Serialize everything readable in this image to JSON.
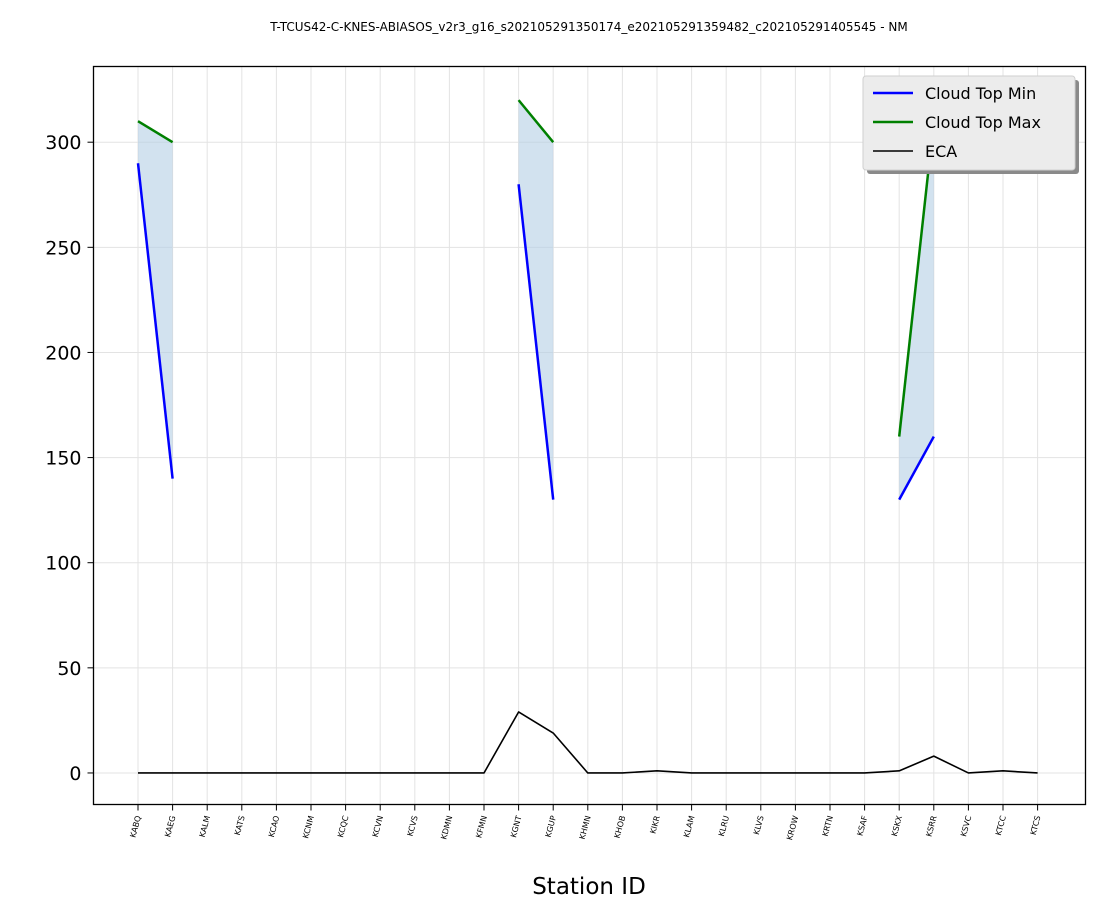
{
  "chart_data": {
    "type": "line",
    "title": "T-TCUS42-C-KNES-ABIASOS_v2r3_g16_s202105291350174_e202105291359482_c202105291405545 - NM",
    "xlabel": "Station ID",
    "ylabel": "",
    "ylim": [
      -15,
      336
    ],
    "yticks": [
      0,
      50,
      100,
      150,
      200,
      250,
      300
    ],
    "grid": true,
    "legend_position": "upper right",
    "categories": [
      "KABQ",
      "KAEG",
      "KALM",
      "KATS",
      "KCAO",
      "KCNM",
      "KCQC",
      "KCVN",
      "KCVS",
      "KDMN",
      "KFMN",
      "KGNT",
      "KGUP",
      "KHMN",
      "KHOB",
      "KIKR",
      "KLAM",
      "KLRU",
      "KLVS",
      "KROW",
      "KRTN",
      "KSAF",
      "KSKX",
      "KSRR",
      "KSVC",
      "KTCC",
      "KTCS"
    ],
    "series": [
      {
        "name": "Cloud Top Min",
        "color": "#0000ff",
        "width": 2.5,
        "values": [
          290,
          140,
          null,
          null,
          null,
          null,
          null,
          null,
          null,
          null,
          null,
          280,
          130,
          null,
          null,
          null,
          null,
          null,
          null,
          null,
          null,
          null,
          130,
          160,
          null,
          null,
          null
        ]
      },
      {
        "name": "Cloud Top Max",
        "color": "#008000",
        "width": 2.5,
        "values": [
          310,
          300,
          null,
          null,
          null,
          null,
          null,
          null,
          null,
          null,
          null,
          320,
          300,
          null,
          null,
          null,
          null,
          null,
          null,
          null,
          null,
          null,
          160,
          310,
          null,
          null,
          null
        ]
      },
      {
        "name": "ECA",
        "color": "#000000",
        "width": 1.6,
        "values": [
          0,
          0,
          0,
          0,
          0,
          0,
          0,
          0,
          0,
          0,
          0,
          29,
          19,
          0,
          0,
          1,
          0,
          0,
          0,
          0,
          0,
          0,
          1,
          8,
          0,
          1,
          0
        ]
      }
    ],
    "fill_between": {
      "lower": "Cloud Top Min",
      "upper": "Cloud Top Max",
      "color": "#b4cfe4",
      "opacity": 0.6
    }
  }
}
